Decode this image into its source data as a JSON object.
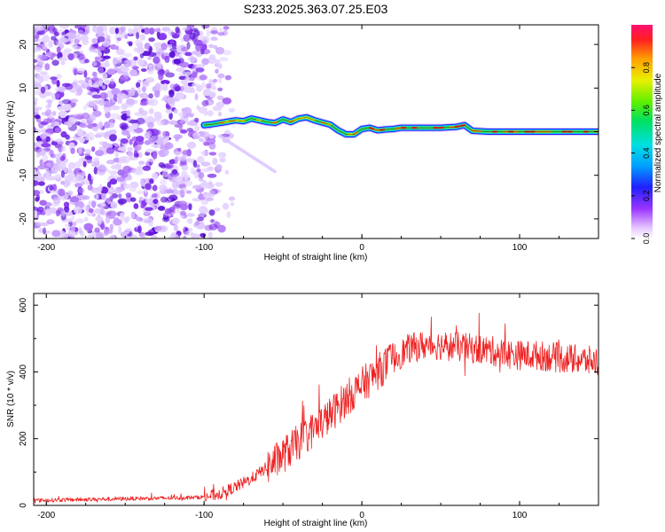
{
  "title": "S233.2025.363.07.25.E03",
  "chart_data": [
    {
      "type": "heatmap",
      "name": "spectrogram",
      "xlabel": "Height of straight line (km)",
      "ylabel": "Frequency (Hz)",
      "xlim": [
        -208,
        150
      ],
      "ylim": [
        -24.5,
        24.5
      ],
      "xticks": [
        -200,
        -100,
        0,
        100
      ],
      "xtick_labels": [
        "-200",
        "-100",
        "0",
        "100"
      ],
      "yticks": [
        -20,
        -10,
        0,
        10,
        20
      ],
      "ytick_labels": [
        "-20",
        "-10",
        "0",
        "10",
        "20"
      ],
      "ridge": {
        "x": [
          -100,
          -95,
          -90,
          -85,
          -80,
          -75,
          -70,
          -65,
          -60,
          -55,
          -50,
          -45,
          -40,
          -35,
          -30,
          -25,
          -20,
          -15,
          -10,
          -5,
          0,
          5,
          10,
          15,
          20,
          25,
          30,
          40,
          50,
          60,
          65,
          70,
          80,
          90,
          100,
          110,
          120,
          130,
          140,
          150
        ],
        "freq_hz": [
          1.5,
          1.7,
          2.0,
          2.3,
          2.6,
          2.4,
          3.0,
          2.6,
          2.2,
          2.0,
          2.8,
          2.2,
          3.0,
          3.3,
          2.6,
          2.1,
          1.6,
          0.3,
          -0.6,
          -0.6,
          0.6,
          0.9,
          0.3,
          0.5,
          0.6,
          0.9,
          0.9,
          0.9,
          0.9,
          1.1,
          1.5,
          0.2,
          0.0,
          0.0,
          0.0,
          0.0,
          0.0,
          0.0,
          0.0,
          0.0
        ]
      },
      "noise_region_x": [
        -208,
        -92
      ]
    },
    {
      "type": "colorbar",
      "name": "amplitude-colorbar",
      "label": "Normalized spectral amplitude",
      "ylim": [
        0,
        1
      ],
      "ticks": [
        0.0,
        0.2,
        0.4,
        0.6,
        0.8
      ],
      "tick_labels": [
        "0.0",
        "0.2",
        "0.4",
        "0.6",
        "0.8"
      ]
    },
    {
      "type": "line",
      "name": "snr-plot",
      "xlabel": "Height of straight line (km)",
      "ylabel": "SNR (10 * v/v)",
      "xlim": [
        -208,
        150
      ],
      "ylim": [
        0,
        635
      ],
      "xticks": [
        -200,
        -100,
        0,
        100
      ],
      "xtick_labels": [
        "-200",
        "-100",
        "0",
        "100"
      ],
      "yticks": [
        0,
        200,
        400,
        600
      ],
      "ytick_labels": [
        "0",
        "200",
        "400",
        "600"
      ],
      "series": [
        {
          "name": "SNR",
          "color": "#ee2222",
          "envelope_x": [
            -208,
            -150,
            -120,
            -100,
            -90,
            -80,
            -70,
            -60,
            -50,
            -40,
            -30,
            -20,
            -10,
            0,
            10,
            20,
            30,
            40,
            50,
            60,
            70,
            80,
            90,
            100,
            110,
            120,
            130,
            140,
            150
          ],
          "envelope_y": [
            15,
            20,
            22,
            25,
            35,
            55,
            80,
            115,
            150,
            190,
            230,
            270,
            320,
            360,
            400,
            440,
            470,
            480,
            480,
            475,
            470,
            465,
            455,
            450,
            450,
            445,
            440,
            435,
            430
          ]
        }
      ]
    }
  ],
  "colors": {
    "line": "#ee2222",
    "noise": "#7a28e0",
    "axis": "#000000"
  }
}
